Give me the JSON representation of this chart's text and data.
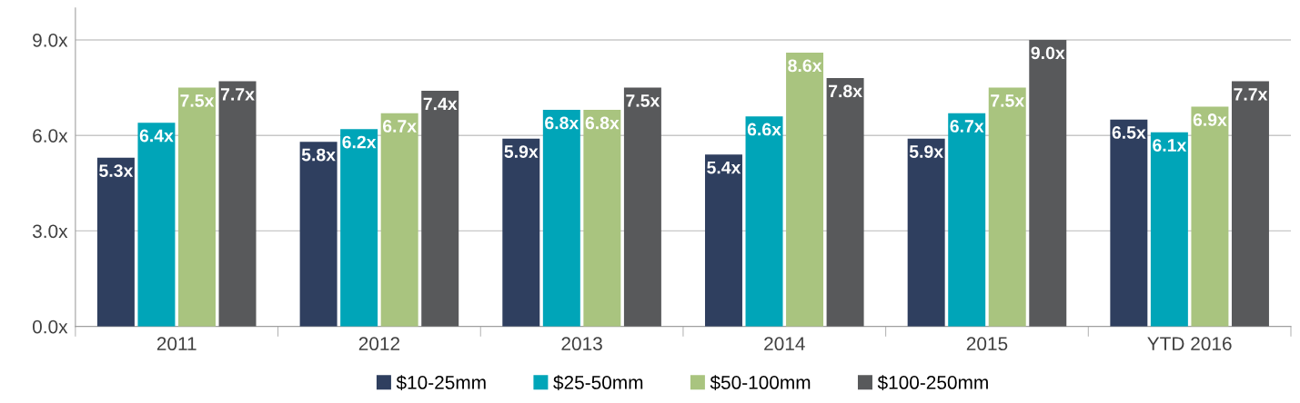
{
  "chart_data": {
    "type": "bar",
    "categories": [
      "2011",
      "2012",
      "2013",
      "2014",
      "2015",
      "YTD 2016"
    ],
    "series": [
      {
        "name": "$10-25mm",
        "color": "#2f3f5f",
        "values": [
          5.3,
          5.8,
          5.9,
          5.4,
          5.9,
          6.5
        ],
        "value_labels": [
          "5.3x",
          "5.8x",
          "5.9x",
          "5.4x",
          "5.9x",
          "6.5x"
        ]
      },
      {
        "name": "$25-50mm",
        "color": "#00a5b8",
        "values": [
          6.4,
          6.2,
          6.8,
          6.6,
          6.7,
          6.1
        ],
        "value_labels": [
          "6.4x",
          "6.2x",
          "6.8x",
          "6.6x",
          "6.7x",
          "6.1x"
        ]
      },
      {
        "name": "$50-100mm",
        "color": "#a9c47f",
        "values": [
          7.5,
          6.7,
          6.8,
          8.6,
          7.5,
          6.9
        ],
        "value_labels": [
          "7.5x",
          "6.7x",
          "6.8x",
          "8.6x",
          "7.5x",
          "6.9x"
        ]
      },
      {
        "name": "$100-250mm",
        "color": "#58595b",
        "values": [
          7.7,
          7.4,
          7.5,
          7.8,
          9.0,
          7.7
        ],
        "value_labels": [
          "7.7x",
          "7.4x",
          "7.5x",
          "7.8x",
          "9.0x",
          "7.7x"
        ]
      }
    ],
    "ylim": [
      0,
      10
    ],
    "yticks": [
      {
        "value": 0,
        "label": "0.0x"
      },
      {
        "value": 3,
        "label": "3.0x"
      },
      {
        "value": 6,
        "label": "6.0x"
      },
      {
        "value": 9,
        "label": "9.0x"
      }
    ],
    "grid": "y",
    "legend": "bottom"
  }
}
